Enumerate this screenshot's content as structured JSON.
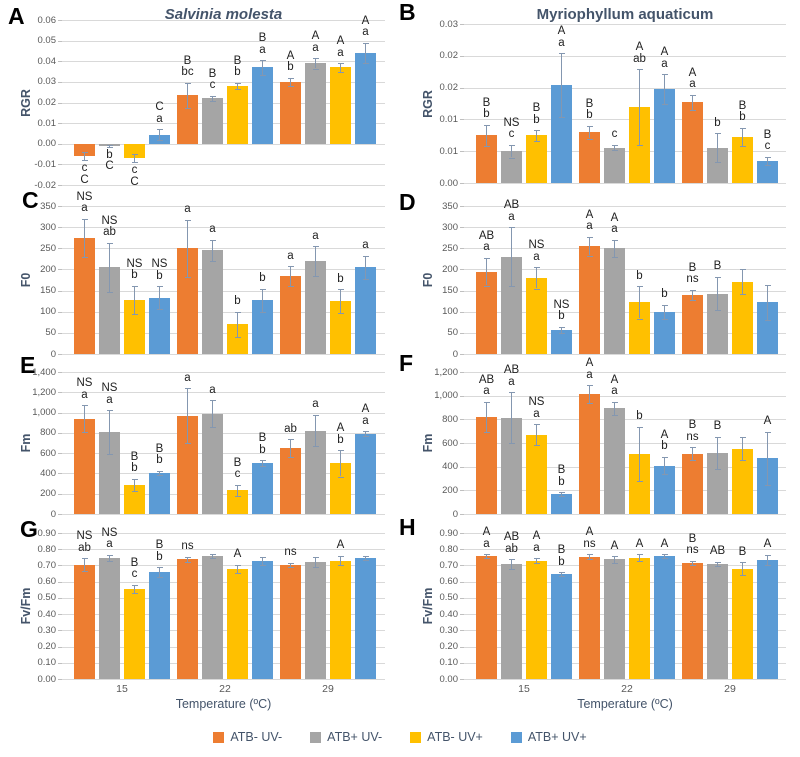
{
  "colors": {
    "grid": "#D9D9D9",
    "error_bar": "#8497B0",
    "axis_text": "#595959",
    "heading_text": "#44546A",
    "bar_label_text": "#1f1f1f"
  },
  "series": [
    {
      "name": "ATB- UV-",
      "color": "#ED7D31"
    },
    {
      "name": "ATB+ UV-",
      "color": "#A5A5A5"
    },
    {
      "name": "ATB- UV+",
      "color": "#FFC000"
    },
    {
      "name": "ATB+ UV+",
      "color": "#5B9BD5"
    }
  ],
  "legend": {
    "items": [
      {
        "label": "ATB- UV-",
        "color": "#ED7D31"
      },
      {
        "label": "ATB+ UV-",
        "color": "#A5A5A5"
      },
      {
        "label": "ATB- UV+",
        "color": "#FFC000"
      },
      {
        "label": "ATB+ UV+",
        "color": "#5B9BD5"
      }
    ]
  },
  "x_axis": {
    "title": "Temperature (ºC)",
    "categories": [
      "15",
      "22",
      "29"
    ]
  },
  "chart_data": [
    {
      "type": "bar",
      "letter": "A",
      "title": "Salvinia molesta",
      "title_italic": true,
      "ylabel": "RGR",
      "ymin": -0.02,
      "ymax": 0.06,
      "yticks": [
        {
          "v": 0.06,
          "t": "0.06"
        },
        {
          "v": 0.05,
          "t": "0.05"
        },
        {
          "v": 0.04,
          "t": "0.04"
        },
        {
          "v": 0.03,
          "t": "0.03"
        },
        {
          "v": 0.02,
          "t": "0.02"
        },
        {
          "v": 0.01,
          "t": "0.01"
        },
        {
          "v": 0.0,
          "t": "0.00"
        },
        {
          "v": -0.01,
          "t": "-0.01"
        },
        {
          "v": -0.02,
          "t": "-0.02"
        }
      ],
      "show_x": false,
      "groups": [
        {
          "x": "15",
          "bars": [
            {
              "v": -0.006,
              "e": 0.002,
              "lab": "c\nC"
            },
            {
              "v": -0.001,
              "e": 0.0005,
              "lab": "b\nC"
            },
            {
              "v": -0.007,
              "e": 0.002,
              "lab": "c\nC"
            },
            {
              "v": 0.0045,
              "e": 0.0025,
              "lab": "C\na"
            }
          ]
        },
        {
          "x": "22",
          "bars": [
            {
              "v": 0.0235,
              "e": 0.006,
              "lab": "B\nbc"
            },
            {
              "v": 0.022,
              "e": 0.0012,
              "lab": "B\nc"
            },
            {
              "v": 0.028,
              "e": 0.0015,
              "lab": "B\nb"
            },
            {
              "v": 0.037,
              "e": 0.0035,
              "lab": "B\na"
            }
          ]
        },
        {
          "x": "29",
          "bars": [
            {
              "v": 0.03,
              "e": 0.002,
              "lab": "A\nb"
            },
            {
              "v": 0.039,
              "e": 0.0025,
              "lab": "A\na"
            },
            {
              "v": 0.037,
              "e": 0.002,
              "lab": "A\na"
            },
            {
              "v": 0.044,
              "e": 0.005,
              "lab": "A\na"
            }
          ]
        }
      ]
    },
    {
      "type": "bar",
      "letter": "B",
      "title": "Myriophyllum aquaticum",
      "title_italic": false,
      "ylabel": "RGR",
      "ymin": 0,
      "ymax": 0.03,
      "yticks": [
        {
          "v": 0.03,
          "t": "0.03"
        },
        {
          "v": 0.024,
          "t": "0.02"
        },
        {
          "v": 0.018,
          "t": "0.02"
        },
        {
          "v": 0.012,
          "t": "0.01"
        },
        {
          "v": 0.006,
          "t": "0.01"
        },
        {
          "v": 0.0,
          "t": "0.00"
        }
      ],
      "show_x": false,
      "groups": [
        {
          "x": "15",
          "bars": [
            {
              "v": 0.009,
              "e": 0.002,
              "lab": "B\nb"
            },
            {
              "v": 0.006,
              "e": 0.0012,
              "lab": "NS\nc"
            },
            {
              "v": 0.009,
              "e": 0.001,
              "lab": "B\nb"
            },
            {
              "v": 0.0185,
              "e": 0.006,
              "lab": "A\na"
            }
          ]
        },
        {
          "x": "22",
          "bars": [
            {
              "v": 0.0096,
              "e": 0.0012,
              "lab": "B\nb"
            },
            {
              "v": 0.0067,
              "e": 0.0005,
              "lab": "c"
            },
            {
              "v": 0.0143,
              "e": 0.0072,
              "lab": "A\nab"
            },
            {
              "v": 0.0177,
              "e": 0.0028,
              "lab": "A\na"
            }
          ]
        },
        {
          "x": "29",
          "bars": [
            {
              "v": 0.0152,
              "e": 0.0015,
              "lab": "A\na"
            },
            {
              "v": 0.0067,
              "e": 0.0027,
              "lab": "b"
            },
            {
              "v": 0.0087,
              "e": 0.0017,
              "lab": "B\nb"
            },
            {
              "v": 0.0042,
              "e": 0.0008,
              "lab": "B\nc"
            }
          ]
        }
      ]
    },
    {
      "type": "bar",
      "letter": "C",
      "title": "",
      "ylabel": "F0",
      "ymin": 0,
      "ymax": 350,
      "yticks": [
        {
          "v": 350,
          "t": "350"
        },
        {
          "v": 300,
          "t": "300"
        },
        {
          "v": 250,
          "t": "250"
        },
        {
          "v": 200,
          "t": "200"
        },
        {
          "v": 150,
          "t": "150"
        },
        {
          "v": 100,
          "t": "100"
        },
        {
          "v": 50,
          "t": "50"
        },
        {
          "v": 0,
          "t": "0"
        }
      ],
      "show_x": false,
      "groups": [
        {
          "x": "15",
          "bars": [
            {
              "v": 275,
              "e": 45,
              "lab": "NS\na"
            },
            {
              "v": 205,
              "e": 58,
              "lab": "NS\nab"
            },
            {
              "v": 128,
              "e": 33,
              "lab": "NS\nb"
            },
            {
              "v": 133,
              "e": 27,
              "lab": "NS\nb"
            }
          ]
        },
        {
          "x": "22",
          "bars": [
            {
              "v": 250,
              "e": 68,
              "lab": "a"
            },
            {
              "v": 245,
              "e": 25,
              "lab": "a"
            },
            {
              "v": 70,
              "e": 30,
              "lab": "b"
            },
            {
              "v": 127,
              "e": 27,
              "lab": "b"
            }
          ]
        },
        {
          "x": "29",
          "bars": [
            {
              "v": 185,
              "e": 23,
              "lab": "a"
            },
            {
              "v": 220,
              "e": 35,
              "lab": "a"
            },
            {
              "v": 125,
              "e": 28,
              "lab": "b"
            },
            {
              "v": 205,
              "e": 27,
              "lab": "a"
            }
          ]
        }
      ]
    },
    {
      "type": "bar",
      "letter": "D",
      "title": "",
      "ylabel": "F0",
      "ymin": 0,
      "ymax": 350,
      "yticks": [
        {
          "v": 350,
          "t": "350"
        },
        {
          "v": 300,
          "t": "300"
        },
        {
          "v": 250,
          "t": "250"
        },
        {
          "v": 200,
          "t": "200"
        },
        {
          "v": 150,
          "t": "150"
        },
        {
          "v": 100,
          "t": "100"
        },
        {
          "v": 50,
          "t": "50"
        },
        {
          "v": 0,
          "t": "0"
        }
      ],
      "show_x": false,
      "groups": [
        {
          "x": "15",
          "bars": [
            {
              "v": 195,
              "e": 33,
              "lab": "AB\na"
            },
            {
              "v": 230,
              "e": 70,
              "lab": "AB\na"
            },
            {
              "v": 180,
              "e": 25,
              "lab": "NS\na"
            },
            {
              "v": 57,
              "e": 8,
              "lab": "NS\nb"
            }
          ]
        },
        {
          "x": "22",
          "bars": [
            {
              "v": 255,
              "e": 22,
              "lab": "A\na"
            },
            {
              "v": 250,
              "e": 20,
              "lab": "A\na"
            },
            {
              "v": 122,
              "e": 38,
              "lab": "b"
            },
            {
              "v": 100,
              "e": 17,
              "lab": "b"
            }
          ]
        },
        {
          "x": "29",
          "bars": [
            {
              "v": 140,
              "e": 12,
              "lab": "B\nns"
            },
            {
              "v": 143,
              "e": 40,
              "lab": "B"
            },
            {
              "v": 171,
              "e": 30,
              "lab": ""
            },
            {
              "v": 122,
              "e": 42,
              "lab": ""
            }
          ]
        }
      ]
    },
    {
      "type": "bar",
      "letter": "E",
      "title": "",
      "ylabel": "Fm",
      "ymin": 0,
      "ymax": 1400,
      "yticks": [
        {
          "v": 1400,
          "t": "1,400"
        },
        {
          "v": 1200,
          "t": "1,200"
        },
        {
          "v": 1000,
          "t": "1,000"
        },
        {
          "v": 800,
          "t": "800"
        },
        {
          "v": 600,
          "t": "600"
        },
        {
          "v": 400,
          "t": "400"
        },
        {
          "v": 200,
          "t": "200"
        },
        {
          "v": 0,
          "t": "0"
        }
      ],
      "show_x": false,
      "groups": [
        {
          "x": "15",
          "bars": [
            {
              "v": 940,
              "e": 135,
              "lab": "NS\na"
            },
            {
              "v": 810,
              "e": 215,
              "lab": "NS\na"
            },
            {
              "v": 290,
              "e": 60,
              "lab": "B\nb"
            },
            {
              "v": 408,
              "e": 20,
              "lab": "B\nb"
            }
          ]
        },
        {
          "x": "22",
          "bars": [
            {
              "v": 970,
              "e": 270,
              "lab": "a"
            },
            {
              "v": 990,
              "e": 130,
              "lab": "a"
            },
            {
              "v": 235,
              "e": 55,
              "lab": "B\nc"
            },
            {
              "v": 500,
              "e": 30,
              "lab": "B\nb"
            }
          ]
        },
        {
          "x": "29",
          "bars": [
            {
              "v": 648,
              "e": 90,
              "lab": "ab"
            },
            {
              "v": 822,
              "e": 155,
              "lab": "a"
            },
            {
              "v": 500,
              "e": 130,
              "lab": "A\nb"
            },
            {
              "v": 792,
              "e": 25,
              "lab": "A\na"
            }
          ]
        }
      ]
    },
    {
      "type": "bar",
      "letter": "F",
      "title": "",
      "ylabel": "Fm",
      "ymin": 0,
      "ymax": 1200,
      "yticks": [
        {
          "v": 1200,
          "t": "1,200"
        },
        {
          "v": 1000,
          "t": "1,000"
        },
        {
          "v": 800,
          "t": "800"
        },
        {
          "v": 600,
          "t": "600"
        },
        {
          "v": 400,
          "t": "400"
        },
        {
          "v": 200,
          "t": "200"
        },
        {
          "v": 0,
          "t": "0"
        }
      ],
      "show_x": false,
      "groups": [
        {
          "x": "15",
          "bars": [
            {
              "v": 820,
              "e": 130,
              "lab": "AB\na"
            },
            {
              "v": 815,
              "e": 215,
              "lab": "AB\na"
            },
            {
              "v": 670,
              "e": 90,
              "lab": "NS\na"
            },
            {
              "v": 170,
              "e": 15,
              "lab": "B\nb"
            }
          ]
        },
        {
          "x": "22",
          "bars": [
            {
              "v": 1015,
              "e": 75,
              "lab": "A\na"
            },
            {
              "v": 893,
              "e": 55,
              "lab": "A\na"
            },
            {
              "v": 508,
              "e": 230,
              "lab": "b"
            },
            {
              "v": 410,
              "e": 75,
              "lab": "A\nb"
            }
          ]
        },
        {
          "x": "29",
          "bars": [
            {
              "v": 508,
              "e": 55,
              "lab": "B\nns"
            },
            {
              "v": 518,
              "e": 135,
              "lab": "B"
            },
            {
              "v": 553,
              "e": 100,
              "lab": ""
            },
            {
              "v": 472,
              "e": 225,
              "lab": "A"
            }
          ]
        }
      ]
    },
    {
      "type": "bar",
      "letter": "G",
      "title": "",
      "ylabel": "Fv/Fm",
      "ymin": 0,
      "ymax": 0.9,
      "yticks": [
        {
          "v": 0.9,
          "t": "0.90"
        },
        {
          "v": 0.8,
          "t": "0.80"
        },
        {
          "v": 0.7,
          "t": "0.70"
        },
        {
          "v": 0.6,
          "t": "0.60"
        },
        {
          "v": 0.5,
          "t": "0.50"
        },
        {
          "v": 0.4,
          "t": "0.40"
        },
        {
          "v": 0.3,
          "t": "0.30"
        },
        {
          "v": 0.2,
          "t": "0.20"
        },
        {
          "v": 0.1,
          "t": "0.10"
        },
        {
          "v": 0.0,
          "t": "0.00"
        }
      ],
      "show_x": true,
      "groups": [
        {
          "x": "15",
          "bars": [
            {
              "v": 0.705,
              "e": 0.04,
              "lab": "NS\nab"
            },
            {
              "v": 0.745,
              "e": 0.02,
              "lab": "NS\na"
            },
            {
              "v": 0.555,
              "e": 0.025,
              "lab": "B\nc"
            },
            {
              "v": 0.66,
              "e": 0.03,
              "lab": "B\nb"
            }
          ]
        },
        {
          "x": "22",
          "bars": [
            {
              "v": 0.738,
              "e": 0.015,
              "lab": "ns"
            },
            {
              "v": 0.758,
              "e": 0.012,
              "lab": ""
            },
            {
              "v": 0.68,
              "e": 0.025,
              "lab": "A"
            },
            {
              "v": 0.73,
              "e": 0.025,
              "lab": ""
            }
          ]
        },
        {
          "x": "29",
          "bars": [
            {
              "v": 0.705,
              "e": 0.012,
              "lab": "ns"
            },
            {
              "v": 0.72,
              "e": 0.03,
              "lab": ""
            },
            {
              "v": 0.73,
              "e": 0.03,
              "lab": "A"
            },
            {
              "v": 0.744,
              "e": 0.012,
              "lab": ""
            }
          ]
        }
      ]
    },
    {
      "type": "bar",
      "letter": "H",
      "title": "",
      "ylabel": "Fv/Fm",
      "ymin": 0,
      "ymax": 0.9,
      "yticks": [
        {
          "v": 0.9,
          "t": "0.90"
        },
        {
          "v": 0.8,
          "t": "0.80"
        },
        {
          "v": 0.7,
          "t": "0.70"
        },
        {
          "v": 0.6,
          "t": "0.60"
        },
        {
          "v": 0.5,
          "t": "0.50"
        },
        {
          "v": 0.4,
          "t": "0.40"
        },
        {
          "v": 0.3,
          "t": "0.30"
        },
        {
          "v": 0.2,
          "t": "0.20"
        },
        {
          "v": 0.1,
          "t": "0.10"
        },
        {
          "v": 0.0,
          "t": "0.00"
        }
      ],
      "show_x": true,
      "groups": [
        {
          "x": "15",
          "bars": [
            {
              "v": 0.758,
              "e": 0.012,
              "lab": "A\na"
            },
            {
              "v": 0.71,
              "e": 0.03,
              "lab": "AB\nab"
            },
            {
              "v": 0.73,
              "e": 0.015,
              "lab": "A\na"
            },
            {
              "v": 0.645,
              "e": 0.012,
              "lab": "B\nb"
            }
          ]
        },
        {
          "x": "22",
          "bars": [
            {
              "v": 0.755,
              "e": 0.015,
              "lab": "A\nns"
            },
            {
              "v": 0.738,
              "e": 0.02,
              "lab": "A"
            },
            {
              "v": 0.748,
              "e": 0.02,
              "lab": "A"
            },
            {
              "v": 0.758,
              "e": 0.012,
              "lab": "A"
            }
          ]
        },
        {
          "x": "29",
          "bars": [
            {
              "v": 0.715,
              "e": 0.015,
              "lab": "B\nns"
            },
            {
              "v": 0.71,
              "e": 0.012,
              "lab": "AB"
            },
            {
              "v": 0.68,
              "e": 0.04,
              "lab": "B"
            },
            {
              "v": 0.735,
              "e": 0.03,
              "lab": "A"
            }
          ]
        }
      ]
    }
  ]
}
